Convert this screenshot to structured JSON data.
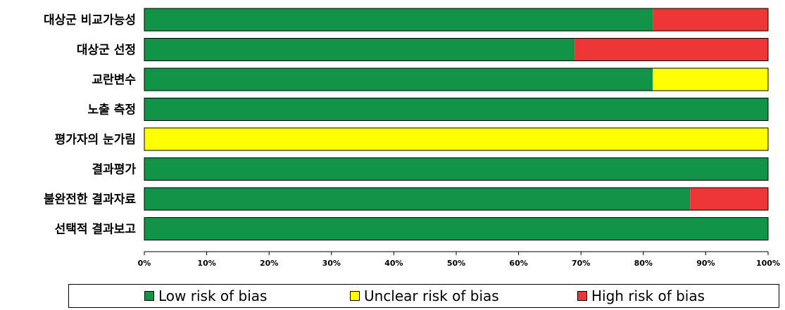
{
  "chart_data": {
    "type": "bar",
    "orientation": "horizontal",
    "stacked": true,
    "categories": [
      "대상군 비교가능성",
      "대상군 선정",
      "교란변수",
      "노출 측정",
      "평가자의 눈가림",
      "결과평가",
      "불완전한 결과자료",
      "선택적 결과보고"
    ],
    "series": [
      {
        "name": "Low risk of bias",
        "color": "#119447",
        "values": [
          81.5,
          69,
          81.5,
          100,
          0,
          100,
          87.5,
          100
        ]
      },
      {
        "name": "Unclear risk of bias",
        "color": "#ffff00",
        "values": [
          0,
          0,
          18.5,
          0,
          100,
          0,
          0,
          0
        ]
      },
      {
        "name": "High risk of bias",
        "color": "#ee3636",
        "values": [
          18.5,
          31,
          0,
          0,
          0,
          0,
          12.5,
          0
        ]
      }
    ],
    "xlim": [
      0,
      100
    ],
    "xticks": [
      "0%",
      "10%",
      "20%",
      "30%",
      "40%",
      "50%",
      "60%",
      "70%",
      "80%",
      "90%",
      "100%"
    ],
    "legend_position": "bottom",
    "grid": false
  }
}
